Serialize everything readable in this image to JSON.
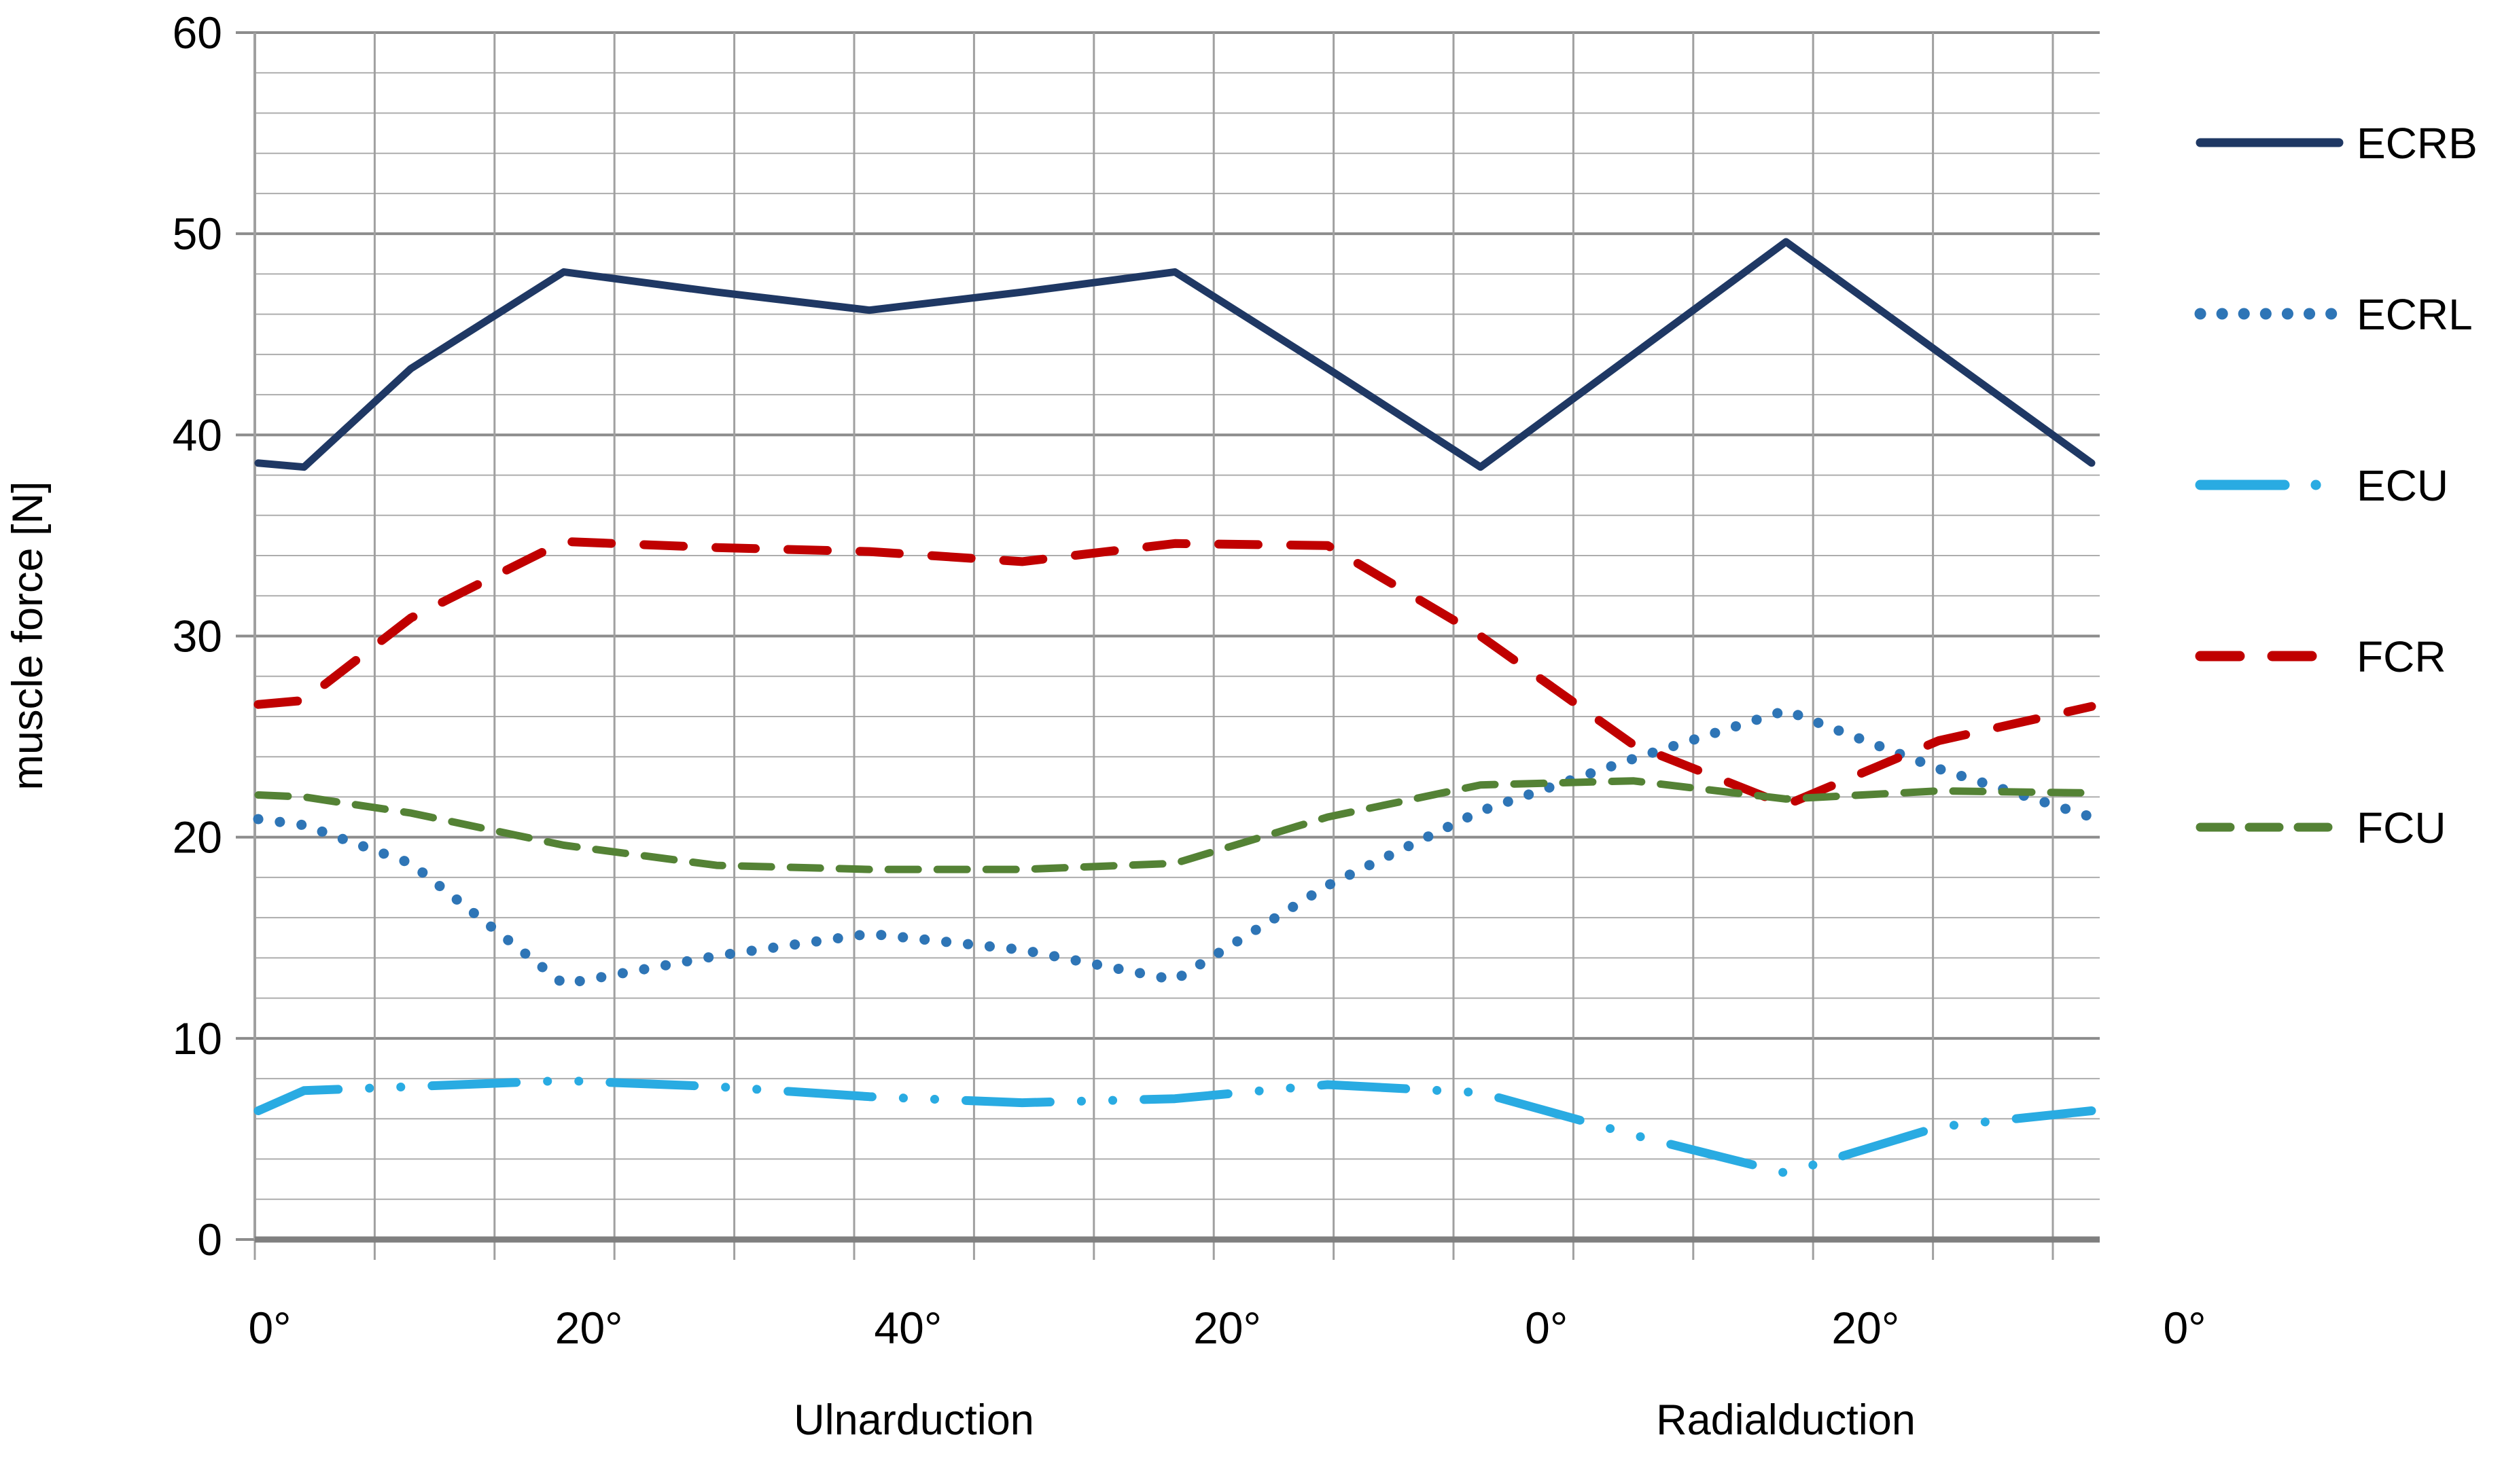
{
  "chart_data": {
    "type": "line",
    "title": "",
    "ylabel": "muscle force [N]",
    "xlabel": "",
    "ylim": [
      0,
      60
    ],
    "y_major_step": 10,
    "y_minor_step": 2,
    "y_tick_labels": [
      "0",
      "10",
      "20",
      "30",
      "40",
      "50",
      "60"
    ],
    "x_tick_labels": [
      "0°",
      "20°",
      "40°",
      "20°",
      "0°",
      "20°",
      "0°"
    ],
    "x_group_labels": [
      {
        "text": "Ulnarduction"
      },
      {
        "text": "Radialduction"
      }
    ],
    "grid": true,
    "legend_position": "right",
    "x": [
      0,
      0.3,
      1,
      2,
      3,
      4,
      5,
      6,
      7,
      8,
      9,
      10,
      11,
      12
    ],
    "series": [
      {
        "name": "ECRB",
        "color": "#1F3864",
        "line_style": "solid",
        "values": [
          38.6,
          38.4,
          43.3,
          48.1,
          47.1,
          46.2,
          47.1,
          48.1,
          43.3,
          38.4,
          44.0,
          49.6,
          44.1,
          38.6
        ]
      },
      {
        "name": "ECRL",
        "color": "#2E75B6",
        "line_style": "dotted",
        "values": [
          20.9,
          20.6,
          18.7,
          12.7,
          14.1,
          15.2,
          14.4,
          12.9,
          17.6,
          21.3,
          23.9,
          26.3,
          23.4,
          21.0
        ]
      },
      {
        "name": "ECU",
        "color": "#29ABE2",
        "line_style": "long-dash-dot-dot",
        "values": [
          6.4,
          7.4,
          7.6,
          7.9,
          7.6,
          7.1,
          6.8,
          7.0,
          7.7,
          7.3,
          5.2,
          3.3,
          5.6,
          6.4
        ]
      },
      {
        "name": "FCR",
        "color": "#C00000",
        "line_style": "dash",
        "values": [
          26.6,
          26.8,
          30.9,
          34.7,
          34.4,
          34.2,
          33.7,
          34.6,
          34.5,
          30.0,
          24.6,
          21.6,
          24.8,
          26.5
        ]
      },
      {
        "name": "FCU",
        "color": "#548235",
        "line_style": "medium-dash",
        "values": [
          22.1,
          22.0,
          21.2,
          19.6,
          18.6,
          18.4,
          18.4,
          18.7,
          21.0,
          22.6,
          22.8,
          21.9,
          22.3,
          22.2
        ]
      }
    ]
  }
}
